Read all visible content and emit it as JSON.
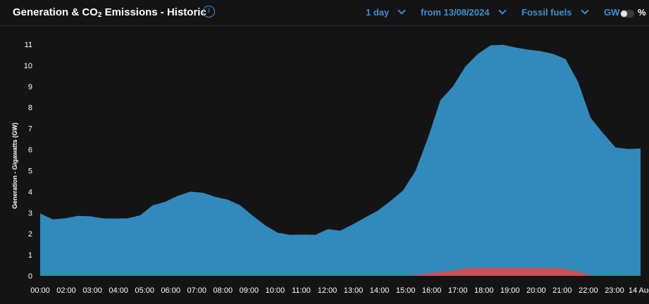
{
  "header": {
    "title_pre": "Generation & CO",
    "title_sub": "2",
    "title_post": " Emissions - Historic",
    "info_icon": "info-icon",
    "period": "1 day",
    "from_date": "from 13/08/2024",
    "fuel_filter": "Fossil fuels",
    "unit_gw": "GW",
    "unit_pct": "%"
  },
  "colors": {
    "background": "#141414",
    "accent": "#3b8fd3",
    "fossil": "#3289bc",
    "emissions": "#cc5058"
  },
  "chart_data": {
    "type": "area",
    "ylabel": "Generation - Gigawatts (GW)",
    "ylim": [
      0,
      11
    ],
    "yticks": [
      0,
      1,
      2,
      3,
      4,
      5,
      6,
      7,
      8,
      9,
      10,
      11
    ],
    "xticks": [
      "00:00",
      "02:00",
      "03:00",
      "04:00",
      "05:00",
      "06:00",
      "07:00",
      "08:00",
      "09:00",
      "10:00",
      "11:00",
      "12:00",
      "13:00",
      "14:00",
      "15:00",
      "16:00",
      "17:00",
      "18:00",
      "19:00",
      "20:00",
      "21:00",
      "22:00",
      "23:00",
      "14 Aug"
    ],
    "x": [
      0,
      0.5,
      1,
      1.5,
      2,
      2.5,
      3,
      3.5,
      4,
      4.5,
      5,
      5.5,
      6,
      6.5,
      7,
      7.5,
      8,
      8.5,
      9,
      9.5,
      10,
      10.5,
      11,
      11.5,
      12,
      12.5,
      13,
      13.5,
      14,
      14.5,
      15,
      15.5,
      16,
      16.5,
      17,
      17.5,
      18,
      18.5,
      19,
      19.5,
      20,
      20.5,
      21,
      21.5,
      22,
      22.5,
      23,
      23.5,
      24
    ],
    "series": [
      {
        "color": "#3289bc",
        "values": [
          2.97,
          2.68,
          2.73,
          2.85,
          2.83,
          2.73,
          2.72,
          2.73,
          2.88,
          3.35,
          3.52,
          3.8,
          4.0,
          3.95,
          3.75,
          3.62,
          3.35,
          2.85,
          2.4,
          2.05,
          1.95,
          1.96,
          1.95,
          2.22,
          2.15,
          2.45,
          2.78,
          3.1,
          3.55,
          4.05,
          4.98,
          6.55,
          8.35,
          9.0,
          9.95,
          10.55,
          10.95,
          10.98,
          10.85,
          10.75,
          10.68,
          10.55,
          10.3,
          9.22,
          7.52,
          6.78,
          6.1,
          6.03,
          6.05
        ]
      },
      {
        "color": "#cc5058",
        "values": [
          0.03,
          0.03,
          0.03,
          0.03,
          0.03,
          0.03,
          0.03,
          0.03,
          0.03,
          0.03,
          0.03,
          0.03,
          0.03,
          0.03,
          0.03,
          0.03,
          0.03,
          0.03,
          0.03,
          0.03,
          0.03,
          0.03,
          0.03,
          0.03,
          0.03,
          0.03,
          0.03,
          0.03,
          0.03,
          0.03,
          0.03,
          0.12,
          0.18,
          0.25,
          0.36,
          0.38,
          0.38,
          0.38,
          0.38,
          0.38,
          0.38,
          0.38,
          0.32,
          0.2,
          0.03,
          0.03,
          0.03,
          0.03,
          0.03
        ]
      }
    ]
  }
}
